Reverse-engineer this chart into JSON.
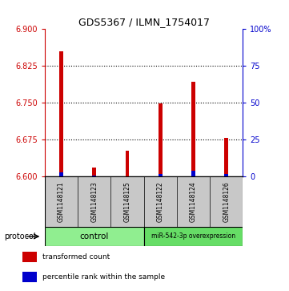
{
  "title": "GDS5367 / ILMN_1754017",
  "samples": [
    "GSM1148121",
    "GSM1148123",
    "GSM1148125",
    "GSM1148122",
    "GSM1148124",
    "GSM1148126"
  ],
  "red_values": [
    6.855,
    6.617,
    6.652,
    6.748,
    6.793,
    6.678
  ],
  "blue_values": [
    6.608,
    6.601,
    6.6,
    6.604,
    6.611,
    6.604
  ],
  "y_min": 6.6,
  "y_max": 6.9,
  "y_ticks_left": [
    6.6,
    6.675,
    6.75,
    6.825,
    6.9
  ],
  "y_ticks_right": [
    0,
    25,
    50,
    75,
    100
  ],
  "bar_width": 0.12,
  "red_color": "#CC0000",
  "blue_color": "#0000CC",
  "sample_box_color": "#C8C8C8",
  "legend_red_label": "transformed count",
  "legend_blue_label": "percentile rank within the sample",
  "left_axis_color": "#CC0000",
  "right_axis_color": "#0000CC",
  "control_color": "#90EE90",
  "overexp_color": "#66DD66"
}
